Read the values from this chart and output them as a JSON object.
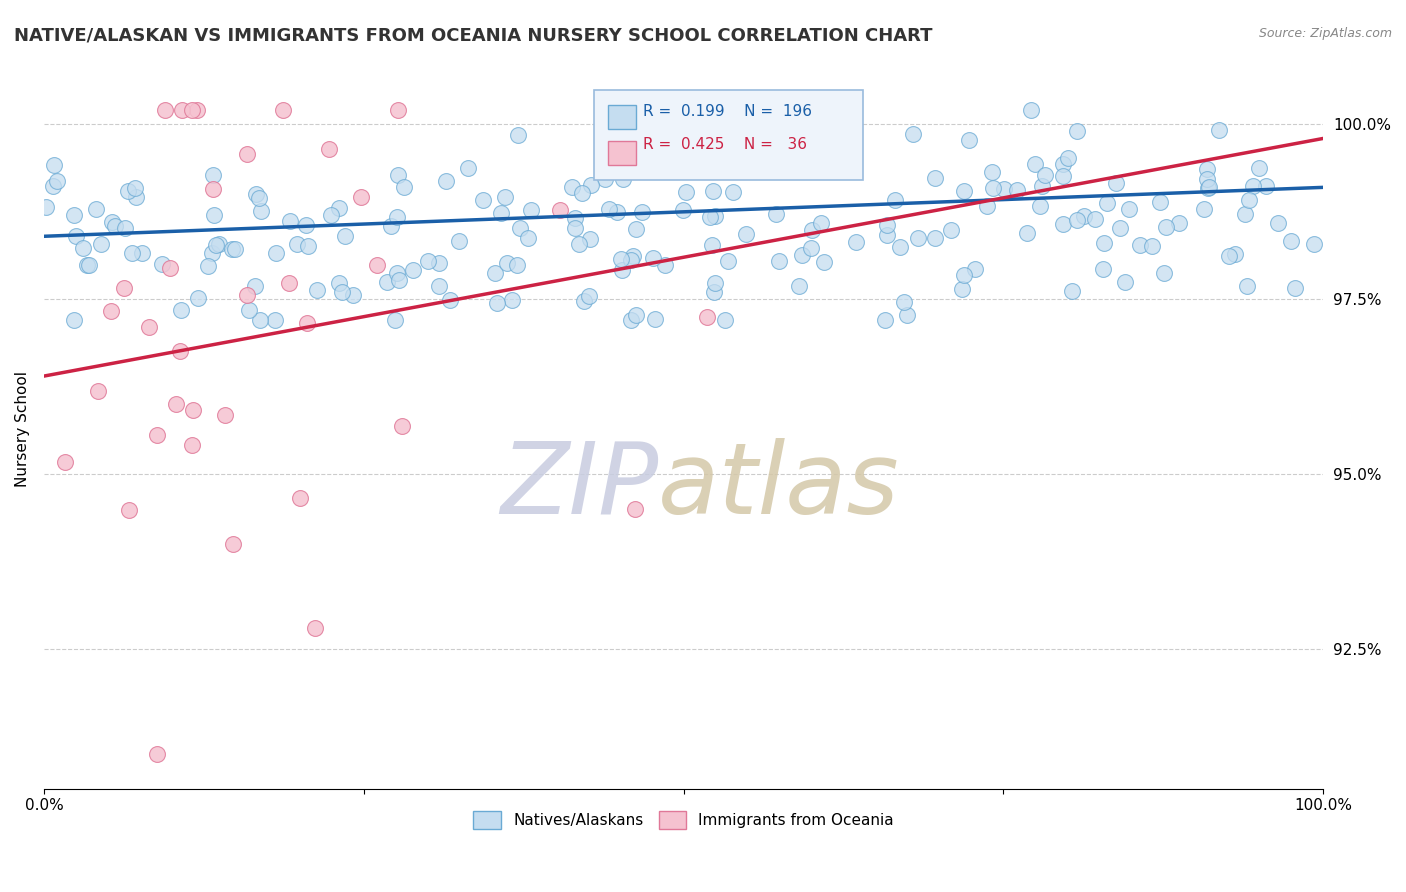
{
  "title": "NATIVE/ALASKAN VS IMMIGRANTS FROM OCEANIA NURSERY SCHOOL CORRELATION CHART",
  "source_text": "Source: ZipAtlas.com",
  "ylabel": "Nursery School",
  "xlim": [
    0,
    1.0
  ],
  "ylim": [
    0.905,
    1.008
  ],
  "yticks": [
    0.925,
    0.95,
    0.975,
    1.0
  ],
  "ytick_labels": [
    "92.5%",
    "95.0%",
    "97.5%",
    "100.0%"
  ],
  "blue_R": 0.199,
  "blue_N": 196,
  "pink_R": 0.425,
  "pink_N": 36,
  "blue_color": "#c5ddf0",
  "blue_edge_color": "#6aaad4",
  "pink_color": "#f5c2d0",
  "pink_edge_color": "#e07898",
  "blue_line_color": "#1a5fa8",
  "pink_line_color": "#cc2244",
  "dot_size": 130,
  "alpha": 0.75,
  "background_color": "#ffffff",
  "grid_color": "#cccccc",
  "title_fontsize": 13,
  "axis_label_fontsize": 11,
  "tick_fontsize": 11,
  "watermark_zip_color": "#c8cce0",
  "watermark_atlas_color": "#d4c8a8"
}
